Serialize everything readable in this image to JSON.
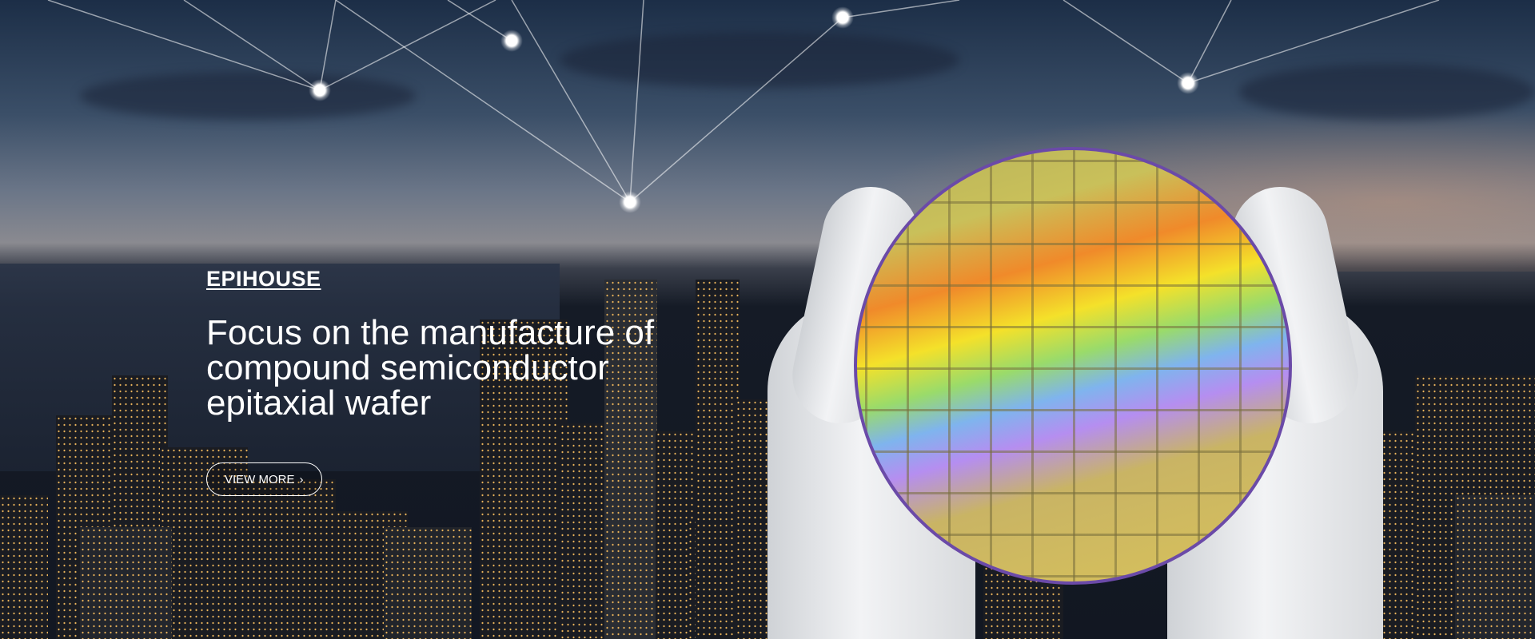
{
  "hero": {
    "brand": "EPIHOUSE",
    "title_lines": [
      "Focus on the manufacture of",
      "compound semiconductor",
      "epitaxial wafer"
    ],
    "button_label": "VIEW MORE",
    "button_icon": "chevron-right-icon"
  },
  "colors": {
    "text": "#ffffff",
    "wafer_rim": "#6b4aa8"
  }
}
